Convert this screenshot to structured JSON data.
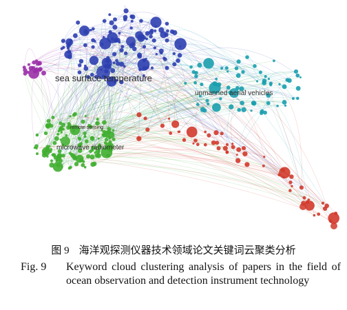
{
  "figure": {
    "keywords": [
      "sea surface temperature",
      "unmanned aerial vehicles",
      "remote sensing",
      "microwave radiometer"
    ],
    "caption": {
      "label_zh": "图 9",
      "text_zh": "海洋观探测仪器技术领域论文关键词云聚类分析",
      "label_en": "Fig. 9",
      "text_en": "Keyword cloud clustering analysis of papers in the field of ocean observation and detection instrument technology"
    }
  }
}
